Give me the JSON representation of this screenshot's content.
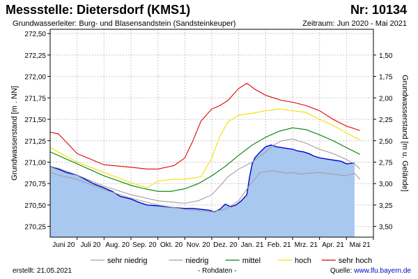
{
  "header": {
    "title": "Messstelle: Dietersdorf (KMS1)",
    "nr": "Nr: 10134",
    "aquifer": "Grundwasserleiter:  Burg- und Blasensandstein (Sandsteinkeuper)",
    "period": "Zeitraum: Jun 2020 - Mai 2021"
  },
  "footer": {
    "created": "erstellt:  21.05.2021",
    "raw": "- Rohdaten -",
    "source_label": "Quelle: ",
    "source_link": "www.lfu.bayern.de"
  },
  "colors": {
    "area_fill": "#a8c8f0",
    "measured": "#0000cc",
    "sehr_niedrig": "#a0a0a0",
    "niedrig": "#a0a0a0",
    "mittel": "#008000",
    "hoch": "#f0e000",
    "sehr_hoch": "#e00000",
    "grid": "#c8c8c8"
  },
  "chart_data": {
    "type": "line",
    "ylabel": "Grundwasserstand [m . NN]",
    "y2label": "Grundwasserstand [m u. Gelände]",
    "ylim": [
      270.125,
      272.55
    ],
    "y_ticks": [
      "270,25",
      "270,50",
      "270,75",
      "271,00",
      "271,25",
      "271,50",
      "271,75",
      "272,00",
      "272,25",
      "272,50"
    ],
    "y2_ticks": [
      "1,50",
      "1,75",
      "2,00",
      "2,25",
      "2,50",
      "2,75",
      "3,00",
      "3,25",
      "3,50"
    ],
    "y2_offset": 273.75,
    "x_labels": [
      "Juni 20",
      "Juli 20",
      "Aug. 20",
      "Sep. 20",
      "Okt. 20",
      "Nov. 20",
      "Dez. 20",
      "Jan. 21",
      "Feb. 21",
      "Mrz. 21",
      "Apr. 21",
      "Mai 21"
    ],
    "grid": true,
    "legend_position": "bottom",
    "series": [
      {
        "name": "sehr niedrig",
        "key": "sehr_niedrig",
        "x": [
          0,
          0.3,
          1,
          2,
          3,
          4,
          5,
          6,
          6.5,
          7,
          7.4,
          7.8,
          8.3,
          8.8,
          9,
          9.3,
          9.6,
          10,
          10.5,
          11,
          11.3,
          11.5
        ],
        "values": [
          270.88,
          270.85,
          270.8,
          270.68,
          270.58,
          270.5,
          270.45,
          270.42,
          270.45,
          270.55,
          270.73,
          270.88,
          270.9,
          270.87,
          270.88,
          270.86,
          270.87,
          270.88,
          270.86,
          270.84,
          270.87,
          270.8
        ]
      },
      {
        "name": "niedrig",
        "key": "niedrig",
        "x": [
          0,
          0.3,
          1,
          2,
          3,
          4,
          5,
          5.5,
          6,
          6.3,
          6.6,
          7,
          7.5,
          8,
          8.3,
          8.6,
          9,
          9.5,
          10,
          10.5,
          11,
          11.3,
          11.5
        ],
        "values": [
          270.95,
          270.93,
          270.85,
          270.72,
          270.62,
          270.55,
          270.52,
          270.55,
          270.62,
          270.72,
          270.83,
          270.92,
          271.0,
          271.12,
          271.2,
          271.25,
          271.27,
          271.22,
          271.15,
          271.1,
          271.03,
          270.98,
          270.92
        ]
      },
      {
        "name": "mittel",
        "key": "mittel",
        "x": [
          0,
          1,
          2,
          3,
          3.5,
          4,
          4.5,
          5,
          5.5,
          6,
          6.5,
          7,
          7.5,
          8,
          8.5,
          9,
          9.5,
          10,
          10.5,
          11,
          11.5
        ],
        "values": [
          271.12,
          270.98,
          270.84,
          270.73,
          270.69,
          270.66,
          270.66,
          270.69,
          270.75,
          270.84,
          270.95,
          271.08,
          271.2,
          271.29,
          271.36,
          271.4,
          271.38,
          271.32,
          271.25,
          271.17,
          271.09
        ]
      },
      {
        "name": "hoch",
        "key": "hoch",
        "x": [
          0,
          1,
          2,
          3,
          3.6,
          4,
          4.6,
          5,
          5.6,
          6,
          6.3,
          6.6,
          7,
          7.5,
          8,
          8.5,
          9,
          9.5,
          10,
          10.5,
          11,
          11.5
        ],
        "values": [
          271.17,
          271.0,
          270.88,
          270.76,
          270.7,
          270.78,
          270.8,
          270.8,
          270.83,
          271.05,
          271.3,
          271.47,
          271.55,
          271.57,
          271.6,
          271.62,
          271.6,
          271.58,
          271.5,
          271.43,
          271.34,
          271.26
        ]
      },
      {
        "name": "sehr hoch",
        "key": "sehr_hoch",
        "x": [
          0,
          0.3,
          0.7,
          1,
          2,
          3,
          3.6,
          4,
          4.6,
          5,
          5.3,
          5.6,
          6,
          6.3,
          6.6,
          7,
          7.3,
          7.6,
          8,
          8.3,
          8.6,
          9,
          9.5,
          10,
          10.5,
          11,
          11.5
        ],
        "values": [
          271.35,
          271.33,
          271.2,
          271.1,
          270.97,
          270.94,
          270.92,
          270.92,
          270.96,
          271.05,
          271.25,
          271.48,
          271.62,
          271.66,
          271.72,
          271.86,
          271.92,
          271.85,
          271.78,
          271.75,
          271.72,
          271.7,
          271.66,
          271.6,
          271.5,
          271.42,
          271.37
        ]
      }
    ],
    "measured": {
      "name": "Grundwasserstand",
      "key": "measured",
      "x": [
        0,
        0.3,
        0.6,
        1,
        1.3,
        1.6,
        2,
        2.3,
        2.6,
        3,
        3.3,
        3.6,
        4,
        4.3,
        4.6,
        5,
        5.3,
        5.6,
        5.9,
        6.1,
        6.3,
        6.5,
        6.7,
        6.9,
        7.1,
        7.3,
        7.4,
        7.5,
        7.6,
        7.8,
        8,
        8.2,
        8.4,
        8.6,
        8.8,
        9,
        9.2,
        9.4,
        9.6,
        9.8,
        10,
        10.2,
        10.4,
        10.6,
        10.8,
        11,
        11.3
      ],
      "values": [
        270.95,
        270.92,
        270.88,
        270.85,
        270.8,
        270.75,
        270.7,
        270.66,
        270.6,
        270.57,
        270.53,
        270.5,
        270.49,
        270.48,
        270.47,
        270.46,
        270.46,
        270.45,
        270.44,
        270.42,
        270.45,
        270.51,
        270.48,
        270.5,
        270.55,
        270.62,
        270.82,
        270.98,
        271.05,
        271.12,
        271.18,
        271.2,
        271.18,
        271.17,
        271.16,
        271.15,
        271.13,
        271.12,
        271.1,
        271.07,
        271.05,
        271.04,
        271.03,
        271.02,
        271.01,
        270.98,
        270.99
      ]
    }
  }
}
